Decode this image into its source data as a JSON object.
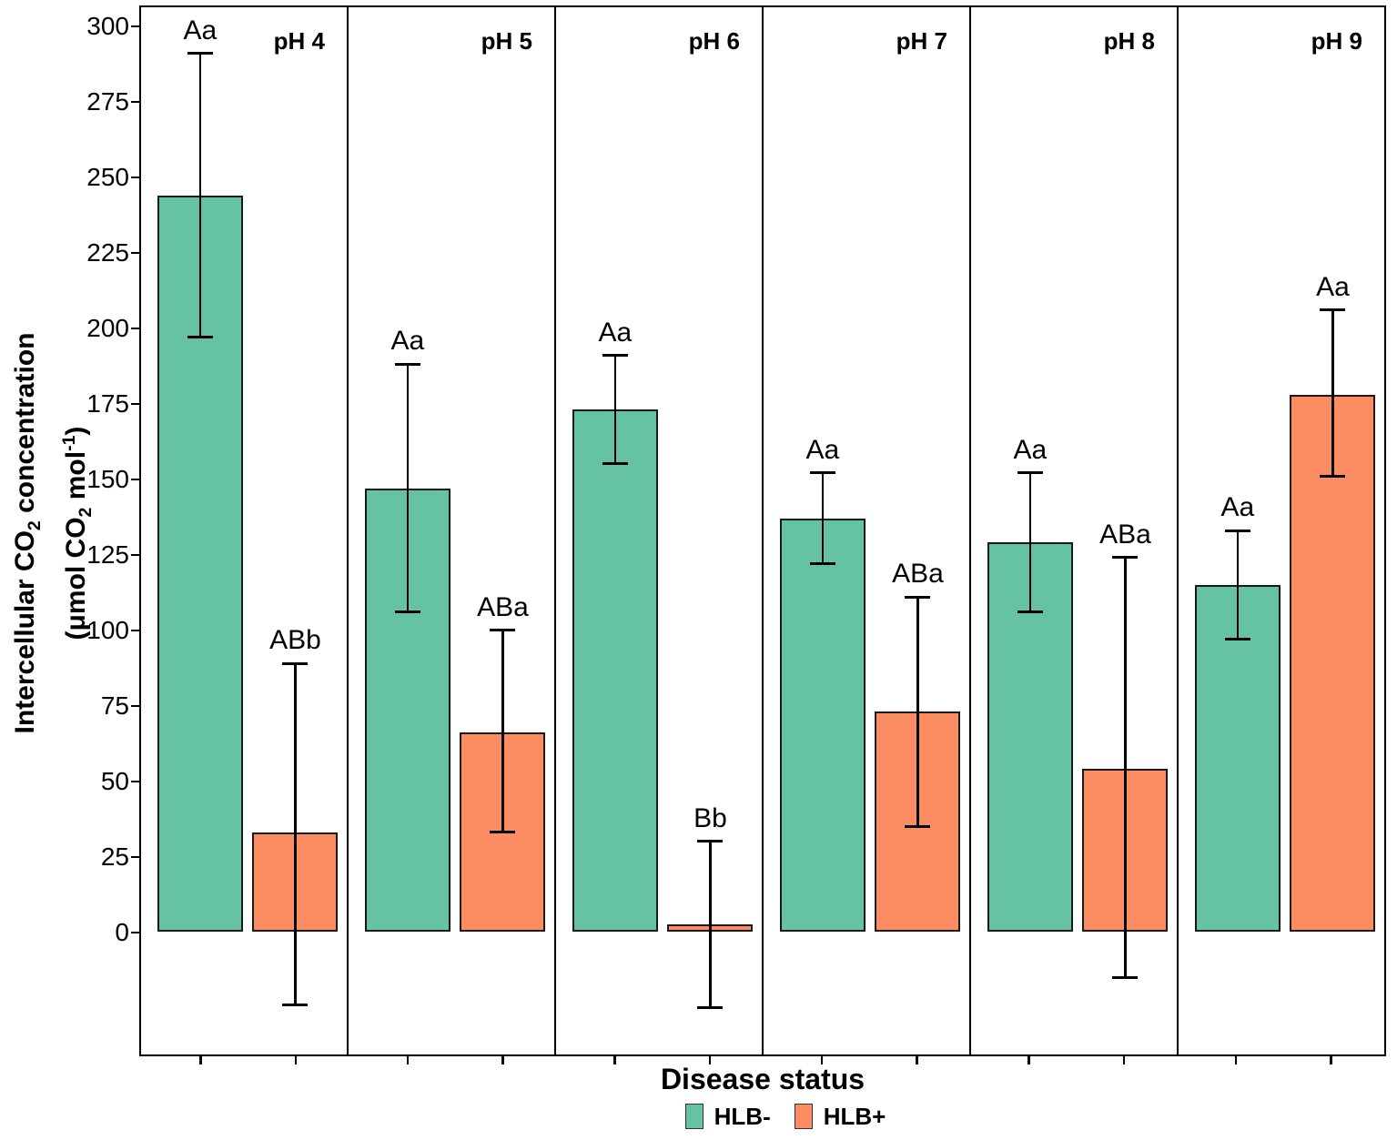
{
  "figure": {
    "y_axis": {
      "title": {
        "line1_pre": "Intercellular CO",
        "line1_sub": "2",
        "line1_post": " concentration",
        "line2_pre": "(μmol CO",
        "line2_sub": "2",
        "line2_mid": " mol",
        "line2_sup": "-1",
        "line2_post": ")"
      }
    },
    "x_axis": {
      "title": "Disease status"
    },
    "legend": {
      "items": [
        {
          "label": "HLB-",
          "color": "#66C2A5"
        },
        {
          "label": "HLB+",
          "color": "#FC8D62"
        }
      ]
    }
  },
  "chart_data": {
    "type": "bar",
    "title": "",
    "xlabel": "Disease status",
    "ylabel": "Intercellular CO2 concentration (umol CO2 mol-1)",
    "facet_variable": "pH",
    "series": [
      "HLB-",
      "HLB+"
    ],
    "colors": {
      "HLB-": "#66C2A5",
      "HLB+": "#FC8D62"
    },
    "ylim": [
      -41,
      307
    ],
    "yticks": [
      0,
      25,
      50,
      75,
      100,
      125,
      150,
      175,
      200,
      225,
      250,
      275,
      300
    ],
    "grid": false,
    "legend_position": "bottom",
    "error_bar_type": "mean ± SE",
    "facets": [
      {
        "facet": "pH 4",
        "bars": [
          {
            "series": "HLB-",
            "mean": 244,
            "lower": 197,
            "upper": 291,
            "letters": "Aa"
          },
          {
            "series": "HLB+",
            "mean": 33,
            "lower": -24,
            "upper": 89,
            "letters": "ABb"
          }
        ]
      },
      {
        "facet": "pH 5",
        "bars": [
          {
            "series": "HLB-",
            "mean": 147,
            "lower": 106,
            "upper": 188,
            "letters": "Aa"
          },
          {
            "series": "HLB+",
            "mean": 66,
            "lower": 33,
            "upper": 100,
            "letters": "ABa"
          }
        ]
      },
      {
        "facet": "pH 6",
        "bars": [
          {
            "series": "HLB-",
            "mean": 173,
            "lower": 155,
            "upper": 191,
            "letters": "Aa"
          },
          {
            "series": "HLB+",
            "mean": 2.5,
            "lower": -25,
            "upper": 30,
            "letters": "Bb"
          }
        ]
      },
      {
        "facet": "pH 7",
        "bars": [
          {
            "series": "HLB-",
            "mean": 137,
            "lower": 122,
            "upper": 152,
            "letters": "Aa"
          },
          {
            "series": "HLB+",
            "mean": 73,
            "lower": 35,
            "upper": 111,
            "letters": "ABa"
          }
        ]
      },
      {
        "facet": "pH 8",
        "bars": [
          {
            "series": "HLB-",
            "mean": 129,
            "lower": 106,
            "upper": 152,
            "letters": "Aa"
          },
          {
            "series": "HLB+",
            "mean": 54,
            "lower": -15,
            "upper": 124,
            "letters": "ABa"
          }
        ]
      },
      {
        "facet": "pH 9",
        "bars": [
          {
            "series": "HLB-",
            "mean": 115,
            "lower": 97,
            "upper": 133,
            "letters": "Aa"
          },
          {
            "series": "HLB+",
            "mean": 178,
            "lower": 151,
            "upper": 206,
            "letters": "Aa"
          }
        ]
      }
    ]
  }
}
